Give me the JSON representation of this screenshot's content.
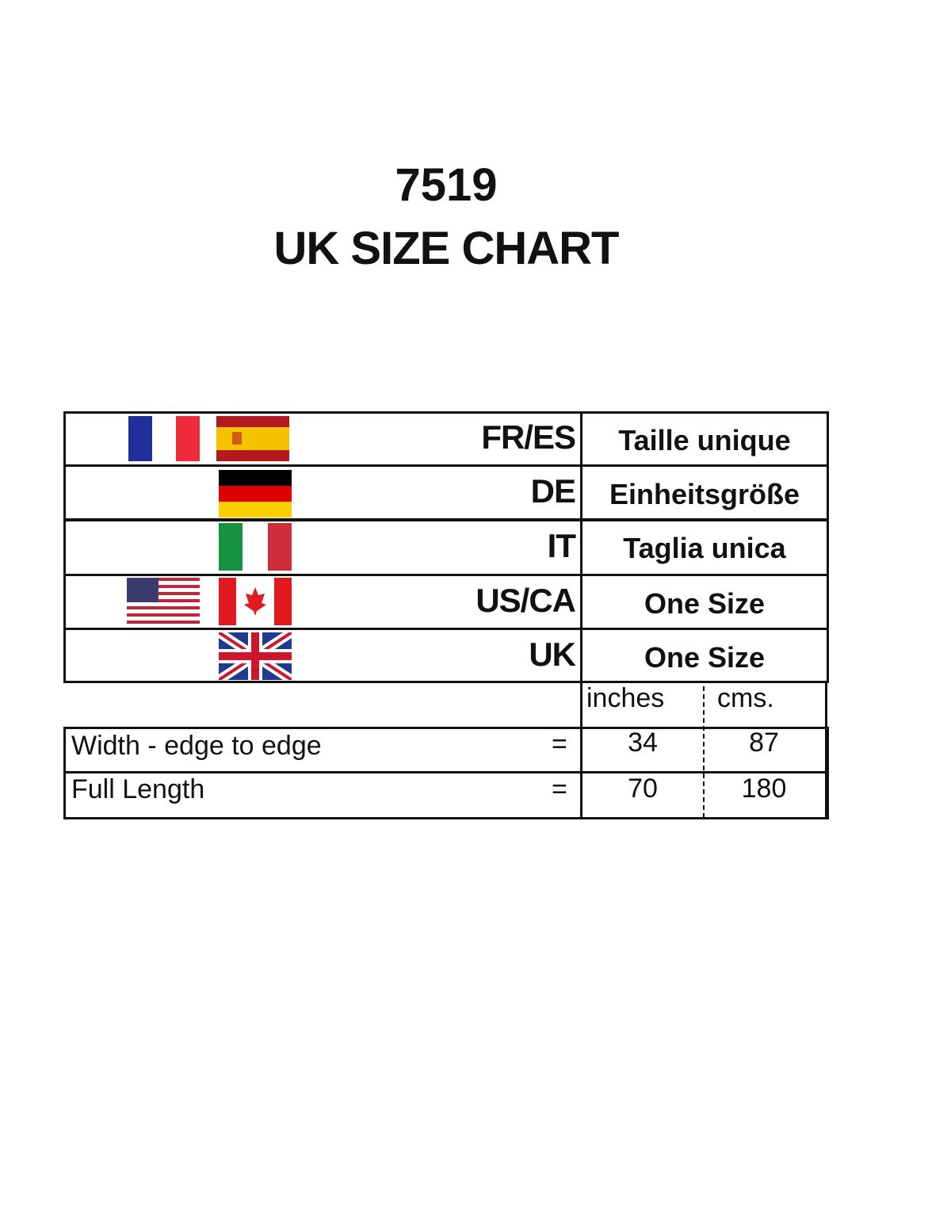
{
  "title": {
    "code": "7519",
    "heading": "UK SIZE CHART"
  },
  "regions": [
    {
      "code": "FR/ES",
      "size": "Taille unique",
      "flags": [
        "france-flag",
        "spain-flag"
      ]
    },
    {
      "code": "DE",
      "size": "Einheitsgröße",
      "flags": [
        "germany-flag"
      ]
    },
    {
      "code": "IT",
      "size": "Taglia unica",
      "flags": [
        "italy-flag"
      ]
    },
    {
      "code": "US/CA",
      "size": "One Size",
      "flags": [
        "usa-flag",
        "canada-flag"
      ]
    },
    {
      "code": "UK",
      "size": "One Size",
      "flags": [
        "uk-flag"
      ]
    }
  ],
  "units": {
    "inches": "inches",
    "cms": "cms."
  },
  "measurements": [
    {
      "label": "Width - edge to edge",
      "eq": "=",
      "inches": "34",
      "cms": "87"
    },
    {
      "label": "Full Length",
      "eq": "=",
      "inches": "70",
      "cms": "180"
    }
  ]
}
